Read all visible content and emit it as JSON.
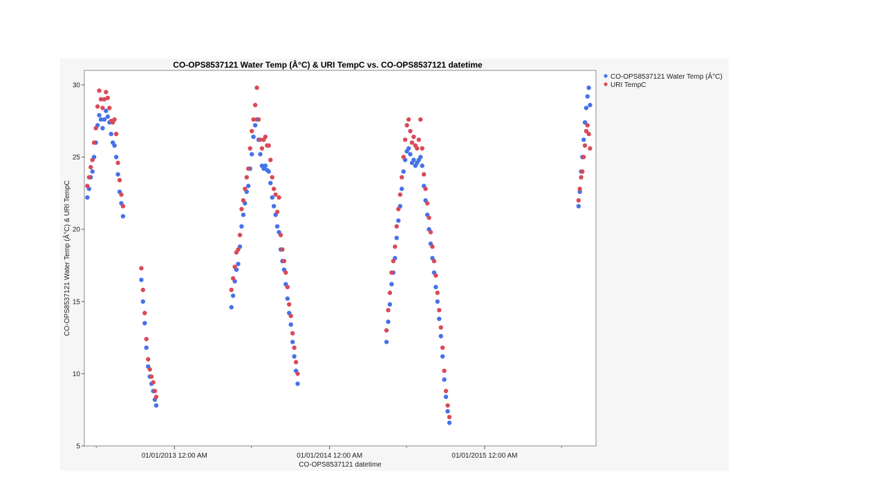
{
  "chart_data": {
    "type": "scatter",
    "title": "CO-OPS8537121 Water Temp (Â°C) & URI TempC vs. CO-OPS8537121 datetime",
    "xlabel": "CO-OPS8537121 datetime",
    "ylabel": "CO-OPS8537121 Water Temp (Â°C) & URI TempC",
    "ylim": [
      5,
      31
    ],
    "xlim": [
      "2012-06-03",
      "2015-09-20"
    ],
    "yticks": [
      5,
      10,
      15,
      20,
      25,
      30
    ],
    "xticks": [
      {
        "date": "2013-01-01",
        "label": "01/01/2013 12:00 AM"
      },
      {
        "date": "2014-01-01",
        "label": "01/01/2014 12:00 AM"
      },
      {
        "date": "2015-01-01",
        "label": "01/01/2015 12:00 AM"
      }
    ],
    "x_minor_ticks": [
      "2012-07-01",
      "2013-07-01",
      "2014-07-01",
      "2015-07-01"
    ],
    "grid": false,
    "legend_position": "right",
    "series": [
      {
        "name": "CO-OPS8537121 Water Temp (Â°C)",
        "color": "#4472e8",
        "marker": "dot",
        "points": [
          [
            "2012-06-10",
            22.2
          ],
          [
            "2012-06-14",
            22.8
          ],
          [
            "2012-06-18",
            23.6
          ],
          [
            "2012-06-22",
            24.0
          ],
          [
            "2012-06-26",
            25.0
          ],
          [
            "2012-06-30",
            26.0
          ],
          [
            "2012-07-04",
            27.2
          ],
          [
            "2012-07-08",
            27.9
          ],
          [
            "2012-07-12",
            27.6
          ],
          [
            "2012-07-16",
            27.0
          ],
          [
            "2012-07-20",
            27.6
          ],
          [
            "2012-07-24",
            28.2
          ],
          [
            "2012-07-28",
            27.8
          ],
          [
            "2012-08-01",
            27.4
          ],
          [
            "2012-08-05",
            26.6
          ],
          [
            "2012-08-09",
            26.0
          ],
          [
            "2012-08-13",
            25.8
          ],
          [
            "2012-08-17",
            25.0
          ],
          [
            "2012-08-21",
            23.8
          ],
          [
            "2012-08-25",
            22.6
          ],
          [
            "2012-08-29",
            21.8
          ],
          [
            "2012-09-02",
            20.9
          ],
          [
            "2012-10-15",
            16.5
          ],
          [
            "2012-10-19",
            15.0
          ],
          [
            "2012-10-23",
            13.5
          ],
          [
            "2012-10-27",
            11.8
          ],
          [
            "2012-10-31",
            10.5
          ],
          [
            "2012-11-04",
            9.8
          ],
          [
            "2012-11-08",
            9.3
          ],
          [
            "2012-11-12",
            8.8
          ],
          [
            "2012-11-16",
            8.2
          ],
          [
            "2012-11-19",
            7.8
          ],
          [
            "2013-05-15",
            14.6
          ],
          [
            "2013-05-19",
            15.4
          ],
          [
            "2013-05-23",
            16.4
          ],
          [
            "2013-05-27",
            17.2
          ],
          [
            "2013-05-31",
            17.6
          ],
          [
            "2013-06-04",
            18.8
          ],
          [
            "2013-06-08",
            20.2
          ],
          [
            "2013-06-12",
            21.0
          ],
          [
            "2013-06-16",
            21.8
          ],
          [
            "2013-06-20",
            22.6
          ],
          [
            "2013-06-24",
            23.0
          ],
          [
            "2013-06-28",
            24.2
          ],
          [
            "2013-07-02",
            25.2
          ],
          [
            "2013-07-06",
            26.4
          ],
          [
            "2013-07-10",
            27.2
          ],
          [
            "2013-07-14",
            27.6
          ],
          [
            "2013-07-18",
            26.2
          ],
          [
            "2013-07-22",
            25.2
          ],
          [
            "2013-07-26",
            24.4
          ],
          [
            "2013-07-30",
            24.2
          ],
          [
            "2013-08-03",
            24.4
          ],
          [
            "2013-08-07",
            24.1
          ],
          [
            "2013-08-11",
            24.0
          ],
          [
            "2013-08-15",
            23.2
          ],
          [
            "2013-08-19",
            22.2
          ],
          [
            "2013-08-23",
            21.6
          ],
          [
            "2013-08-27",
            21.0
          ],
          [
            "2013-08-31",
            20.2
          ],
          [
            "2013-09-04",
            19.8
          ],
          [
            "2013-09-08",
            18.6
          ],
          [
            "2013-09-12",
            17.8
          ],
          [
            "2013-09-16",
            17.2
          ],
          [
            "2013-09-20",
            16.2
          ],
          [
            "2013-09-24",
            15.2
          ],
          [
            "2013-09-28",
            14.2
          ],
          [
            "2013-10-02",
            13.4
          ],
          [
            "2013-10-06",
            12.2
          ],
          [
            "2013-10-10",
            11.2
          ],
          [
            "2013-10-14",
            10.2
          ],
          [
            "2013-10-18",
            9.3
          ],
          [
            "2014-05-15",
            12.2
          ],
          [
            "2014-05-19",
            13.6
          ],
          [
            "2014-05-23",
            14.8
          ],
          [
            "2014-05-27",
            16.2
          ],
          [
            "2014-05-31",
            17.0
          ],
          [
            "2014-06-04",
            18.0
          ],
          [
            "2014-06-08",
            19.4
          ],
          [
            "2014-06-12",
            20.6
          ],
          [
            "2014-06-16",
            21.6
          ],
          [
            "2014-06-20",
            22.8
          ],
          [
            "2014-06-24",
            24.0
          ],
          [
            "2014-06-28",
            24.8
          ],
          [
            "2014-07-02",
            25.4
          ],
          [
            "2014-07-06",
            25.6
          ],
          [
            "2014-07-10",
            25.2
          ],
          [
            "2014-07-14",
            24.6
          ],
          [
            "2014-07-18",
            24.8
          ],
          [
            "2014-07-22",
            24.4
          ],
          [
            "2014-07-26",
            24.6
          ],
          [
            "2014-07-30",
            24.8
          ],
          [
            "2014-08-03",
            25.0
          ],
          [
            "2014-08-07",
            24.4
          ],
          [
            "2014-08-11",
            23.0
          ],
          [
            "2014-08-15",
            22.0
          ],
          [
            "2014-08-19",
            21.0
          ],
          [
            "2014-08-23",
            20.0
          ],
          [
            "2014-08-27",
            19.0
          ],
          [
            "2014-08-31",
            18.0
          ],
          [
            "2014-09-04",
            17.0
          ],
          [
            "2014-09-08",
            16.0
          ],
          [
            "2014-09-12",
            15.0
          ],
          [
            "2014-09-16",
            13.8
          ],
          [
            "2014-09-20",
            12.6
          ],
          [
            "2014-09-24",
            11.2
          ],
          [
            "2014-09-28",
            9.6
          ],
          [
            "2014-10-02",
            8.4
          ],
          [
            "2014-10-06",
            7.4
          ],
          [
            "2014-10-10",
            6.6
          ],
          [
            "2015-08-10",
            21.6
          ],
          [
            "2015-08-13",
            22.6
          ],
          [
            "2015-08-16",
            24.0
          ],
          [
            "2015-08-19",
            25.0
          ],
          [
            "2015-08-22",
            26.2
          ],
          [
            "2015-08-25",
            27.4
          ],
          [
            "2015-08-28",
            28.4
          ],
          [
            "2015-08-31",
            29.2
          ],
          [
            "2015-09-03",
            29.8
          ],
          [
            "2015-09-06",
            28.6
          ]
        ]
      },
      {
        "name": "URI TempC",
        "color": "#d94a58",
        "marker": "dot",
        "points": [
          [
            "2012-06-10",
            23.0
          ],
          [
            "2012-06-14",
            23.6
          ],
          [
            "2012-06-18",
            24.3
          ],
          [
            "2012-06-22",
            24.8
          ],
          [
            "2012-06-26",
            26.0
          ],
          [
            "2012-06-30",
            27.0
          ],
          [
            "2012-07-04",
            28.5
          ],
          [
            "2012-07-08",
            29.6
          ],
          [
            "2012-07-12",
            29.0
          ],
          [
            "2012-07-16",
            28.4
          ],
          [
            "2012-07-20",
            29.0
          ],
          [
            "2012-07-24",
            29.5
          ],
          [
            "2012-07-28",
            29.1
          ],
          [
            "2012-08-01",
            28.4
          ],
          [
            "2012-08-05",
            27.5
          ],
          [
            "2012-08-09",
            27.4
          ],
          [
            "2012-08-13",
            27.6
          ],
          [
            "2012-08-17",
            26.6
          ],
          [
            "2012-08-21",
            24.6
          ],
          [
            "2012-08-25",
            23.4
          ],
          [
            "2012-08-29",
            22.4
          ],
          [
            "2012-09-02",
            21.6
          ],
          [
            "2012-10-15",
            17.3
          ],
          [
            "2012-10-19",
            15.8
          ],
          [
            "2012-10-23",
            14.2
          ],
          [
            "2012-10-27",
            12.4
          ],
          [
            "2012-10-31",
            11.0
          ],
          [
            "2012-11-04",
            10.3
          ],
          [
            "2012-11-08",
            9.8
          ],
          [
            "2012-11-12",
            9.4
          ],
          [
            "2012-11-16",
            8.8
          ],
          [
            "2012-11-19",
            8.4
          ],
          [
            "2013-05-15",
            15.8
          ],
          [
            "2013-05-19",
            16.6
          ],
          [
            "2013-05-23",
            17.4
          ],
          [
            "2013-05-27",
            18.4
          ],
          [
            "2013-05-31",
            18.6
          ],
          [
            "2013-06-04",
            19.6
          ],
          [
            "2013-06-08",
            21.4
          ],
          [
            "2013-06-12",
            22.0
          ],
          [
            "2013-06-16",
            22.8
          ],
          [
            "2013-06-20",
            23.6
          ],
          [
            "2013-06-24",
            24.2
          ],
          [
            "2013-06-28",
            25.6
          ],
          [
            "2013-07-02",
            26.8
          ],
          [
            "2013-07-06",
            27.6
          ],
          [
            "2013-07-10",
            28.6
          ],
          [
            "2013-07-14",
            29.8
          ],
          [
            "2013-07-18",
            27.6
          ],
          [
            "2013-07-22",
            26.2
          ],
          [
            "2013-07-26",
            25.6
          ],
          [
            "2013-07-30",
            26.2
          ],
          [
            "2013-08-03",
            26.4
          ],
          [
            "2013-08-07",
            25.8
          ],
          [
            "2013-08-11",
            25.8
          ],
          [
            "2013-08-15",
            24.8
          ],
          [
            "2013-08-19",
            23.6
          ],
          [
            "2013-08-23",
            22.8
          ],
          [
            "2013-08-27",
            22.4
          ],
          [
            "2013-08-31",
            21.2
          ],
          [
            "2013-09-04",
            22.2
          ],
          [
            "2013-09-08",
            19.6
          ],
          [
            "2013-09-12",
            18.6
          ],
          [
            "2013-09-16",
            17.8
          ],
          [
            "2013-09-20",
            17.0
          ],
          [
            "2013-09-24",
            16.0
          ],
          [
            "2013-09-28",
            14.8
          ],
          [
            "2013-10-02",
            14.0
          ],
          [
            "2013-10-06",
            12.8
          ],
          [
            "2013-10-10",
            11.8
          ],
          [
            "2013-10-14",
            10.8
          ],
          [
            "2013-10-18",
            10.0
          ],
          [
            "2014-05-15",
            13.0
          ],
          [
            "2014-05-19",
            14.4
          ],
          [
            "2014-05-23",
            15.6
          ],
          [
            "2014-05-27",
            17.0
          ],
          [
            "2014-05-31",
            17.8
          ],
          [
            "2014-06-04",
            18.8
          ],
          [
            "2014-06-08",
            20.2
          ],
          [
            "2014-06-12",
            21.4
          ],
          [
            "2014-06-16",
            22.4
          ],
          [
            "2014-06-20",
            23.6
          ],
          [
            "2014-06-24",
            25.0
          ],
          [
            "2014-06-28",
            26.2
          ],
          [
            "2014-07-02",
            27.2
          ],
          [
            "2014-07-06",
            27.6
          ],
          [
            "2014-07-10",
            26.8
          ],
          [
            "2014-07-14",
            26.0
          ],
          [
            "2014-07-18",
            26.4
          ],
          [
            "2014-07-22",
            25.8
          ],
          [
            "2014-07-26",
            25.6
          ],
          [
            "2014-07-30",
            26.2
          ],
          [
            "2014-08-03",
            27.6
          ],
          [
            "2014-08-07",
            25.6
          ],
          [
            "2014-08-11",
            23.8
          ],
          [
            "2014-08-15",
            22.8
          ],
          [
            "2014-08-19",
            21.8
          ],
          [
            "2014-08-23",
            20.8
          ],
          [
            "2014-08-27",
            19.8
          ],
          [
            "2014-08-31",
            18.8
          ],
          [
            "2014-09-04",
            17.8
          ],
          [
            "2014-09-08",
            16.8
          ],
          [
            "2014-09-12",
            15.6
          ],
          [
            "2014-09-16",
            14.4
          ],
          [
            "2014-09-20",
            13.2
          ],
          [
            "2014-09-24",
            11.8
          ],
          [
            "2014-09-28",
            10.2
          ],
          [
            "2014-10-02",
            8.8
          ],
          [
            "2014-10-06",
            7.8
          ],
          [
            "2014-10-10",
            7.0
          ],
          [
            "2015-08-10",
            22.0
          ],
          [
            "2015-08-13",
            22.8
          ],
          [
            "2015-08-16",
            23.6
          ],
          [
            "2015-08-19",
            24.0
          ],
          [
            "2015-08-22",
            25.0
          ],
          [
            "2015-08-25",
            25.8
          ],
          [
            "2015-08-28",
            26.8
          ],
          [
            "2015-08-31",
            27.2
          ],
          [
            "2015-09-03",
            26.6
          ],
          [
            "2015-09-06",
            25.6
          ]
        ]
      }
    ]
  }
}
